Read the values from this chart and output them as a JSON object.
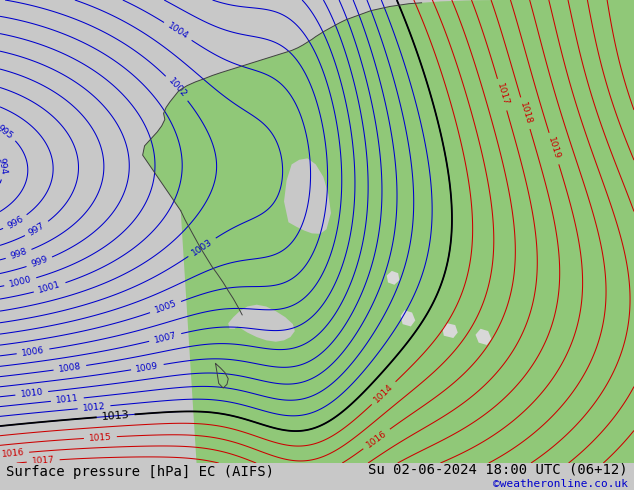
{
  "title_left": "Surface pressure [hPa] EC (AIFS)",
  "title_right": "Su 02-06-2024 18:00 UTC (06+12)",
  "credit": "©weatheronline.co.uk",
  "bg_color": "#c8c8c8",
  "land_color": "#90c878",
  "sea_color": "#c8c8c8",
  "bottom_bar_color": "#ffffff",
  "title_font_size": 10,
  "credit_font_size": 8,
  "bottom_bar_height": 0.055,
  "blue_contour_color": "#0000cc",
  "red_contour_color": "#cc0000",
  "black_contour_color": "#000000"
}
